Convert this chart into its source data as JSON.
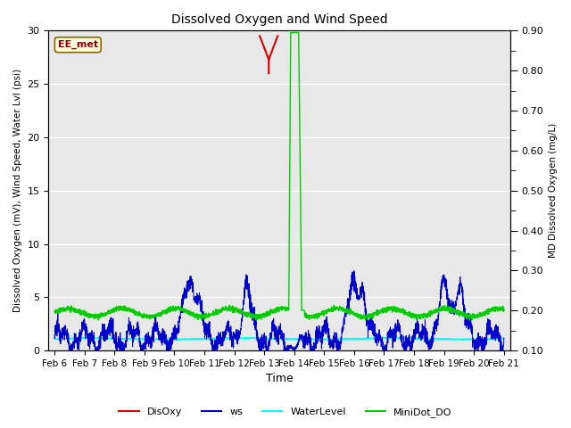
{
  "title": "Dissolved Oxygen and Wind Speed",
  "ylabel_left": "Dissolved Oxygen (mV), Wind Speed, Water Lvl (psi)",
  "ylabel_right": "MD Dissolved Oxygen (mg/L)",
  "xlabel": "Time",
  "ylim_left": [
    0,
    30
  ],
  "ylim_right": [
    0.1,
    0.9
  ],
  "annotation_text": "EE_met",
  "xtick_labels": [
    "Feb 6",
    "Feb 7",
    "Feb 8",
    "Feb 9",
    "Feb 10",
    "Feb 11",
    "Feb 12",
    "Feb 13",
    "Feb 14",
    "Feb 15",
    "Feb 16",
    "Feb 17",
    "Feb 18",
    "Feb 19",
    "Feb 20",
    "Feb 21"
  ],
  "bg_color": "#e8e8e8",
  "disoxy_color": "#dd0000",
  "ws_color": "#0000cc",
  "water_color": "cyan",
  "minidot_color": "#00cc00",
  "legend_items": [
    "DisOxy",
    "ws",
    "WaterLevel",
    "MiniDot_DO"
  ]
}
